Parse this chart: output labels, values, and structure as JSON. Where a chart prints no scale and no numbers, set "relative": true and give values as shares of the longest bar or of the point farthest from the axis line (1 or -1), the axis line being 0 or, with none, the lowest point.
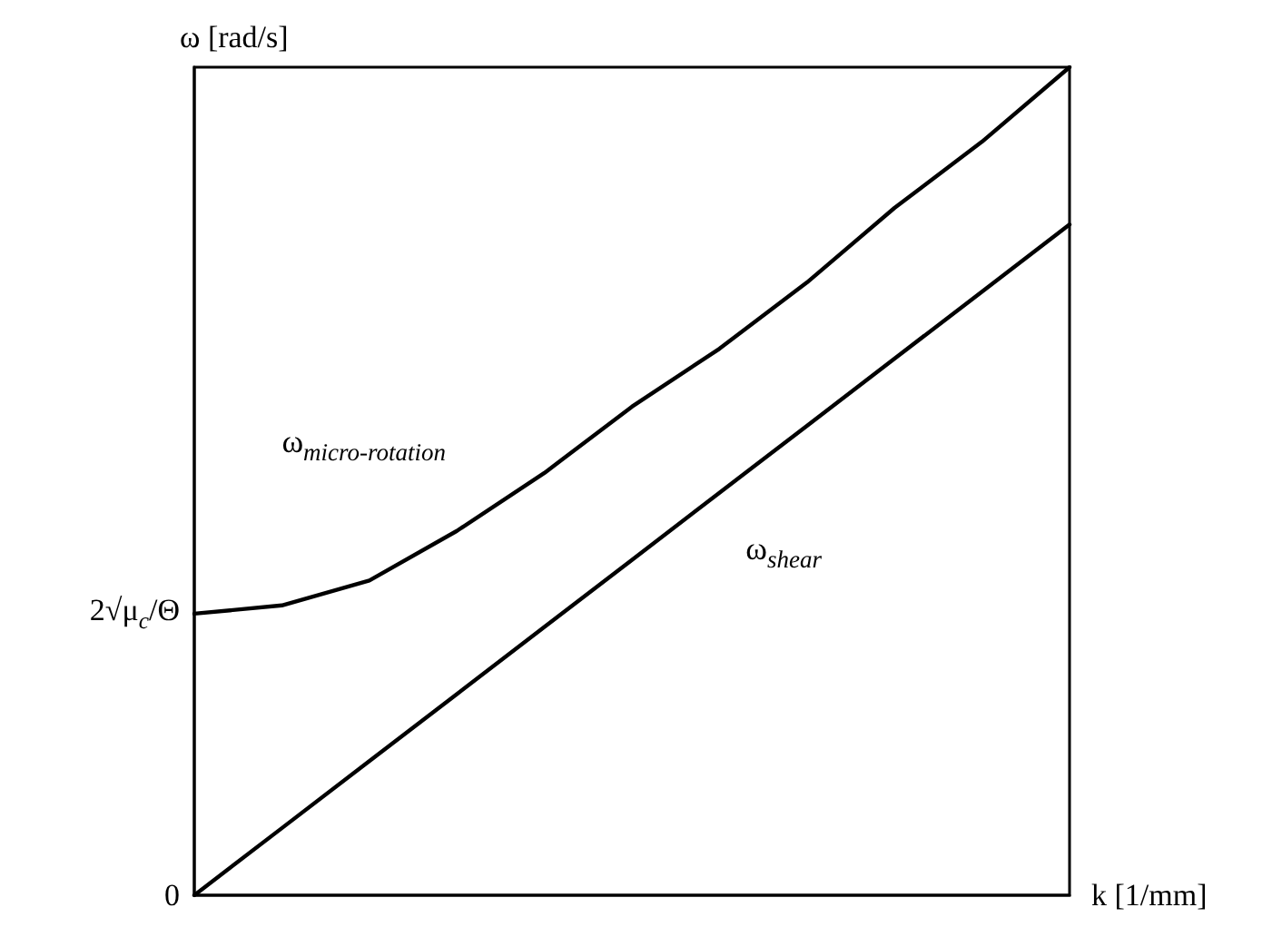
{
  "chart_data": {
    "type": "line",
    "xlabel": "k [1/mm]",
    "ylabel": "ω [rad/s]",
    "relative": true,
    "categories": [
      null,
      null,
      null,
      null,
      null,
      null,
      null,
      null,
      null,
      null,
      null
    ],
    "annotations": [
      "0",
      "2√μ$_{c}$/Θ"
    ],
    "series": [
      {
        "name": "ω$_{micro-rotation}$",
        "color": "#000000",
        "values": [
          0.34,
          0.35,
          0.38,
          0.44,
          0.51,
          0.59,
          0.66,
          0.74,
          0.83,
          0.91,
          1.0
        ]
      },
      {
        "name": "ω$_{shear}$",
        "color": "#000000",
        "values": [
          0,
          0.081,
          0.162,
          0.243,
          0.324,
          0.405,
          0.486,
          0.567,
          0.648,
          0.729,
          0.81
        ]
      }
    ],
    "marker": "none",
    "line_style": "solid"
  }
}
